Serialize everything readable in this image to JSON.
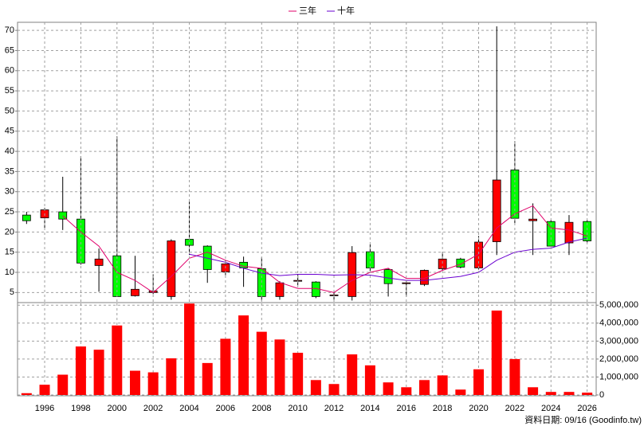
{
  "chart_data": [
    {
      "type": "candlestick",
      "x": [
        1995,
        1996,
        1997,
        1998,
        1999,
        2000,
        2001,
        2002,
        2003,
        2004,
        2005,
        2006,
        2007,
        2008,
        2009,
        2010,
        2011,
        2012,
        2013,
        2014,
        2015,
        2016,
        2017,
        2018,
        2019,
        2020,
        2021,
        2022,
        2023,
        2024,
        2025,
        2026
      ],
      "open": [
        24.2,
        23.5,
        25,
        23.2,
        11.7,
        14.1,
        4.2,
        5,
        4,
        18.2,
        16.5,
        10.1,
        12.5,
        10.9,
        4,
        7.8,
        7.6,
        4.2,
        4,
        15.1,
        10.7,
        7.2,
        7,
        10.9,
        13.3,
        11.1,
        17.6,
        35.4,
        22.8,
        22.6,
        17.3,
        22.6
      ],
      "high": [
        25,
        26,
        33.7,
        38.8,
        15.9,
        43.7,
        14.1,
        9.5,
        18.2,
        27.5,
        16.7,
        12.9,
        13.9,
        13.7,
        7.8,
        9.5,
        7.8,
        5,
        16.5,
        16.9,
        11.1,
        8,
        10.7,
        15.1,
        13.6,
        19,
        71,
        42.5,
        27.1,
        23,
        24.2,
        23
      ],
      "low": [
        22,
        21,
        20.5,
        11.9,
        5.2,
        4,
        4,
        4.6,
        3.2,
        14.3,
        7.4,
        9.3,
        6.4,
        3,
        3.2,
        6.8,
        3.6,
        2.8,
        3,
        10.3,
        4,
        4,
        6.6,
        10.5,
        11,
        10.7,
        14.3,
        22.2,
        14.3,
        16.5,
        14.3,
        17.3
      ],
      "close": [
        22.8,
        25.5,
        23.2,
        12.3,
        13.3,
        4,
        5.8,
        5.4,
        17.8,
        16.7,
        10.7,
        12.1,
        11.1,
        4,
        7.4,
        8,
        4,
        4.4,
        14.9,
        11.1,
        7.2,
        7.4,
        10.5,
        13.3,
        11.3,
        17.5,
        32.9,
        23.4,
        23.2,
        16.5,
        22.4,
        17.8
      ],
      "up_color": "#ff0000",
      "down_color": "#00ff00",
      "series": [
        {
          "name": "三年",
          "color": "#e0006a",
          "values": [
            null,
            null,
            24,
            20,
            16.5,
            10,
            8,
            5,
            9,
            13.5,
            15,
            13,
            11.5,
            11,
            7.5,
            6,
            6,
            5,
            8,
            10,
            11,
            8.5,
            8.5,
            10.5,
            12,
            14.5,
            21,
            24.5,
            26.5,
            21,
            20.5,
            19
          ]
        },
        {
          "name": "十年",
          "color": "#6a00d0",
          "values": [
            null,
            null,
            null,
            null,
            null,
            null,
            null,
            null,
            null,
            14.5,
            13.5,
            12.5,
            11,
            9.8,
            9.2,
            9.5,
            9.5,
            9.3,
            9.4,
            9.3,
            8.6,
            8,
            8,
            8.5,
            9,
            10,
            13,
            15,
            15.7,
            16,
            17.5,
            18.5
          ]
        }
      ],
      "xlim": [
        1994.5,
        2026.5
      ],
      "ylim": [
        2.5,
        72
      ],
      "yticks": [
        5,
        10,
        15,
        20,
        25,
        30,
        35,
        40,
        45,
        50,
        55,
        60,
        65,
        70
      ],
      "grid": true
    },
    {
      "type": "bar",
      "x": [
        1995,
        1996,
        1997,
        1998,
        1999,
        2000,
        2001,
        2002,
        2003,
        2004,
        2005,
        2006,
        2007,
        2008,
        2009,
        2010,
        2011,
        2012,
        2013,
        2014,
        2015,
        2016,
        2017,
        2018,
        2019,
        2020,
        2021,
        2022,
        2023,
        2024,
        2025,
        2026
      ],
      "values": [
        100000,
        570000,
        1130000,
        2700000,
        2520000,
        3870000,
        1350000,
        1260000,
        2040000,
        5090000,
        1780000,
        3130000,
        4430000,
        3520000,
        3090000,
        2350000,
        830000,
        610000,
        2260000,
        1650000,
        700000,
        430000,
        830000,
        1090000,
        300000,
        1430000,
        4700000,
        2000000,
        430000,
        170000,
        170000,
        130000
      ],
      "color": "#ff0000",
      "xlim": [
        1994.5,
        2026.5
      ],
      "xticks": [
        1996,
        1998,
        2000,
        2002,
        2004,
        2006,
        2008,
        2010,
        2012,
        2014,
        2016,
        2018,
        2020,
        2022,
        2024,
        2026
      ],
      "ylim": [
        0,
        5100000
      ],
      "yticks": [
        0,
        {
          "value": 1000000,
          "label": "1,000,000"
        },
        {
          "value": 2000000,
          "label": "2,000,000"
        },
        {
          "value": 3000000,
          "label": "3,000,000"
        },
        {
          "value": 4000000,
          "label": "4,000,000"
        },
        {
          "value": 5000000,
          "label": "5,000,000"
        }
      ],
      "grid": true
    }
  ],
  "source_note": "資料日期: 09/16 (Goodinfo.tw)"
}
